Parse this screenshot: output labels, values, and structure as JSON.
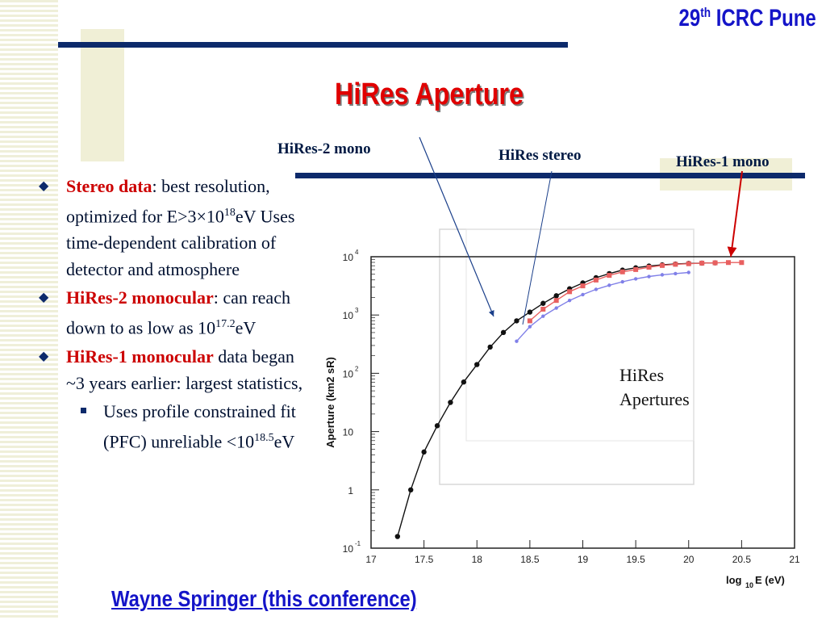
{
  "header": {
    "conference_num": "29",
    "conference_sup": "th",
    "conference_name": "ICRC Pune"
  },
  "title": "HiRes Aperture",
  "callouts": {
    "hires2_mono": "HiRes-2 mono",
    "hires_stereo": "HiRes stereo",
    "hires1_mono": "HiRes-1 mono"
  },
  "bullets": {
    "b1_label": "Stereo data",
    "b1_text_a": ": best resolution, optimized for E>3×10",
    "b1_exp": "18",
    "b1_text_b": "eV Uses time-dependent calibration of detector and atmosphere",
    "b2_label": "HiRes-2 monocular",
    "b2_text_a": ": can reach down to as low as 10",
    "b2_exp": "17.2",
    "b2_text_b": "eV",
    "b3_label": "HiRes-1 monocular",
    "b3_text": " data began ~3 years earlier: largest statistics,",
    "sub_text_a": "Uses profile constrained fit (PFC) unreliable <10",
    "sub_exp": "18.5",
    "sub_text_b": "eV"
  },
  "footer": "Wayne Springer (this conference)",
  "colors": {
    "navy": "#0d2a6b",
    "title_red": "#e00000",
    "header_blue": "#1414c8",
    "bullet_red": "#cc0000"
  },
  "chart_data": {
    "type": "line",
    "ylabel_main": "Aperture (km",
    "ylabel_sup": "2",
    "ylabel_end": " sR)",
    "xlabel_main": "log",
    "xlabel_sub": "10",
    "xlabel_end": "E (eV)",
    "annotation_line1": "HiRes",
    "annotation_line2": "Apertures",
    "xlim": [
      17,
      21
    ],
    "ylim_log10": [
      -1,
      4
    ],
    "x_ticks": [
      "17",
      "17.5",
      "18",
      "18.5",
      "19",
      "19.5",
      "20",
      "20.5",
      "21"
    ],
    "y_ticks": [
      {
        "base": "10",
        "exp": "-1"
      },
      {
        "base": "1",
        "exp": ""
      },
      {
        "base": "10",
        "exp": ""
      },
      {
        "base": "10",
        "exp": "2"
      },
      {
        "base": "10",
        "exp": "3"
      },
      {
        "base": "10",
        "exp": "4"
      }
    ],
    "series": [
      {
        "color": "#111111",
        "x": [
          17.25,
          17.375,
          17.5,
          17.625,
          17.75,
          17.875,
          18.0,
          18.125,
          18.25,
          18.375,
          18.5,
          18.625,
          18.75,
          18.875,
          19.0,
          19.125,
          19.25,
          19.375,
          19.5,
          19.625,
          19.75,
          19.875,
          20.0,
          20.125,
          20.25
        ],
        "log10_y": [
          -0.8,
          0.0,
          0.65,
          1.1,
          1.5,
          1.85,
          2.15,
          2.45,
          2.7,
          2.9,
          3.05,
          3.2,
          3.33,
          3.45,
          3.55,
          3.64,
          3.71,
          3.77,
          3.81,
          3.84,
          3.86,
          3.875,
          3.885,
          3.89,
          3.895
        ]
      },
      {
        "color": "#e86060",
        "x": [
          18.5,
          18.625,
          18.75,
          18.875,
          19.0,
          19.125,
          19.25,
          19.375,
          19.5,
          19.625,
          19.75,
          19.875,
          20.0,
          20.125,
          20.25,
          20.375,
          20.5
        ],
        "log10_y": [
          2.9,
          3.1,
          3.25,
          3.4,
          3.5,
          3.6,
          3.68,
          3.74,
          3.78,
          3.82,
          3.85,
          3.87,
          3.88,
          3.89,
          3.895,
          3.9,
          3.9
        ]
      },
      {
        "color": "#8080e8",
        "x": [
          18.375,
          18.5,
          18.625,
          18.75,
          18.875,
          19.0,
          19.125,
          19.25,
          19.375,
          19.5,
          19.625,
          19.75,
          19.875,
          20.0
        ],
        "log10_y": [
          2.55,
          2.8,
          2.98,
          3.12,
          3.25,
          3.35,
          3.44,
          3.51,
          3.57,
          3.62,
          3.66,
          3.69,
          3.71,
          3.73
        ]
      }
    ]
  }
}
